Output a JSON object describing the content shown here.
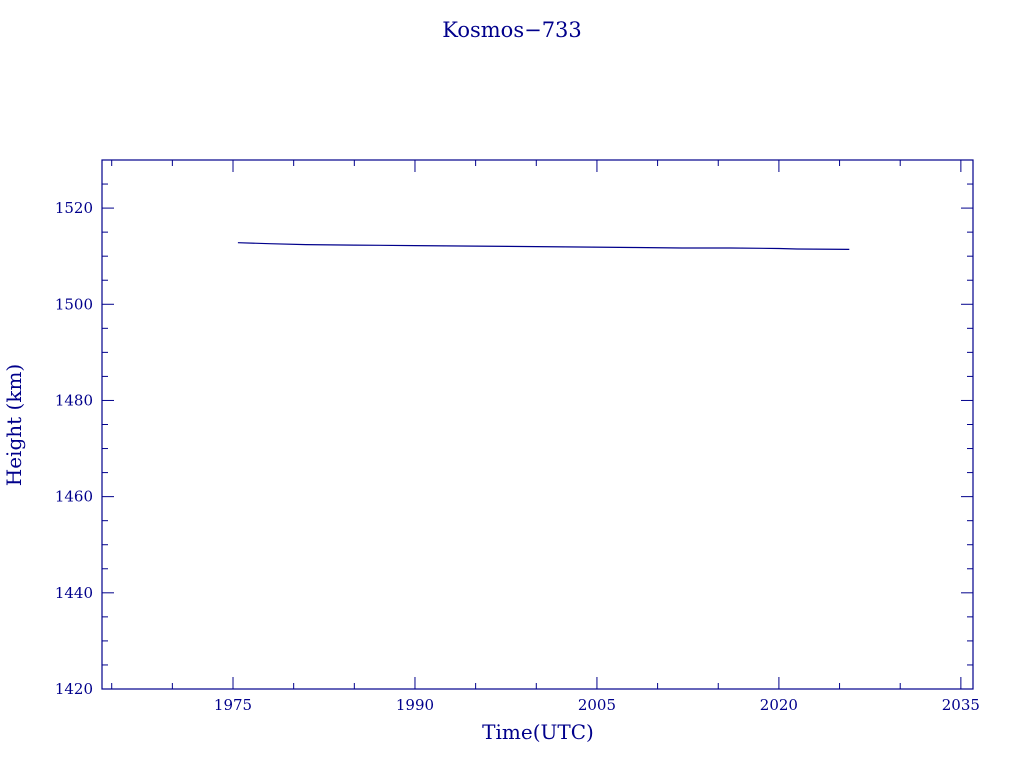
{
  "chart_data": {
    "type": "line",
    "title": "Kosmos−733",
    "xlabel": "Time(UTC)",
    "ylabel": "Height (km)",
    "xlim": [
      1964.2,
      2036.0
    ],
    "ylim": [
      1420,
      1530
    ],
    "x_ticks": [
      1975,
      1990,
      2005,
      2020,
      2035
    ],
    "y_ticks": [
      1420,
      1440,
      1460,
      1480,
      1500,
      1520
    ],
    "grid": false,
    "legend": "none",
    "color": "#00008b",
    "series": [
      {
        "x": [
          1975.4,
          1978.0,
          1981.0,
          1985.0,
          1990.0,
          1995.0,
          2000.0,
          2003.5,
          2008.0,
          2012.0,
          2016.0,
          2020.0,
          2021.5,
          2025.8
        ],
        "y": [
          1512.8,
          1512.6,
          1512.4,
          1512.3,
          1512.2,
          1512.1,
          1512.0,
          1511.9,
          1511.8,
          1511.7,
          1511.7,
          1511.6,
          1511.5,
          1511.4
        ]
      }
    ]
  }
}
